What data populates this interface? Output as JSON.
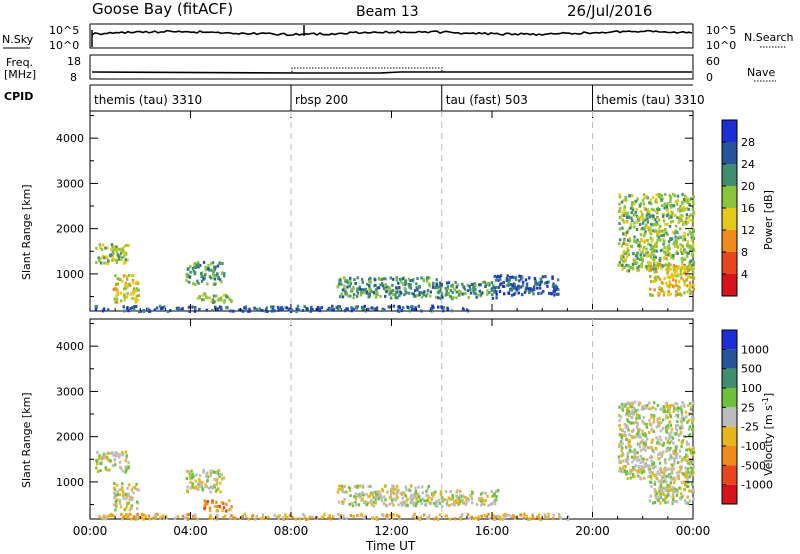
{
  "header": {
    "station": "Goose Bay (fitACF)",
    "beam": "Beam 13",
    "date": "26/Jul/2016"
  },
  "noise_panel": {
    "left_label": "N.Sky",
    "right_label": "N.Search",
    "left_ticks": [
      "10^5",
      "10^0"
    ],
    "right_ticks": [
      "10^5",
      "10^0"
    ]
  },
  "freq_panel": {
    "left_label_1": "Freq.",
    "left_label_2": "[MHz]",
    "right_label": "Nave",
    "left_ticks": [
      "18",
      "8"
    ],
    "right_ticks": [
      "60",
      "0"
    ]
  },
  "cpid": {
    "label": "CPID",
    "segments": [
      {
        "name": "themis (tau) 3310",
        "start_hour": 0.0
      },
      {
        "name": "rbsp 200",
        "start_hour": 8.0
      },
      {
        "name": "tau (fast) 503",
        "start_hour": 14.0
      },
      {
        "name": "themis (tau) 3310",
        "start_hour": 20.0
      }
    ]
  },
  "x_axis": {
    "title": "Time UT",
    "ticks": [
      "00:00",
      "04:00",
      "08:00",
      "12:00",
      "16:00",
      "20:00",
      "00:00"
    ]
  },
  "y_axis": {
    "title": "Slant Range [km]",
    "ticks": [
      "1000",
      "2000",
      "3000",
      "4000"
    ]
  },
  "power_colorbar": {
    "title": "Power [dB]",
    "labels": [
      "4",
      "8",
      "12",
      "16",
      "20",
      "24",
      "28"
    ],
    "colors": [
      "#1c2fd6",
      "#26539a",
      "#3d8f6f",
      "#8ac43a",
      "#e6c81c",
      "#ef8a1c",
      "#e8471d",
      "#d8121a"
    ]
  },
  "velocity_colorbar": {
    "title": "Velocity [m s",
    "superscript": "-1",
    "title_end": "]",
    "labels": [
      "1000",
      "500",
      "100",
      "25",
      "-25",
      "-100",
      "-500",
      "-1000"
    ],
    "colors": [
      "#1c2fd6",
      "#26539a",
      "#3d8f6f",
      "#6cc23b",
      "#bcbcbc",
      "#e6b61c",
      "#ef8a1c",
      "#e8471d",
      "#d8121a"
    ]
  },
  "chart_data": [
    {
      "type": "heatmap",
      "title": "Power [dB]",
      "xlabel": "Time UT",
      "ylabel": "Slant Range [km]",
      "xlim": [
        0,
        24
      ],
      "ylim": [
        180,
        4600
      ],
      "patches": [
        {
          "t0": 0.2,
          "t1": 1.5,
          "r0": 1250,
          "r1": 1700,
          "level": 3
        },
        {
          "t0": 0.9,
          "t1": 1.9,
          "r0": 400,
          "r1": 1000,
          "level": 4
        },
        {
          "t0": 3.8,
          "t1": 5.3,
          "r0": 800,
          "r1": 1300,
          "level": 2
        },
        {
          "t0": 4.2,
          "t1": 5.6,
          "r0": 400,
          "r1": 600,
          "level": 3
        },
        {
          "t0": 0.0,
          "t1": 15.0,
          "r0": 200,
          "r1": 320,
          "level": 1
        },
        {
          "t0": 9.8,
          "t1": 13.8,
          "r0": 500,
          "r1": 950,
          "level": 2
        },
        {
          "t0": 13.6,
          "t1": 16.2,
          "r0": 480,
          "r1": 850,
          "level": 2
        },
        {
          "t0": 16.0,
          "t1": 18.6,
          "r0": 560,
          "r1": 1000,
          "level": 1
        },
        {
          "t0": 21.0,
          "t1": 24.0,
          "r0": 1100,
          "r1": 2800,
          "level": 3
        },
        {
          "t0": 22.2,
          "t1": 24.0,
          "r0": 550,
          "r1": 1250,
          "level": 4
        }
      ]
    },
    {
      "type": "heatmap",
      "title": "Velocity [m s-1]",
      "xlabel": "Time UT",
      "ylabel": "Slant Range [km]",
      "xlim": [
        0,
        24
      ],
      "ylim": [
        180,
        4600
      ],
      "patches": [
        {
          "t0": 0.2,
          "t1": 1.5,
          "r0": 1250,
          "r1": 1700,
          "level": 4
        },
        {
          "t0": 0.9,
          "t1": 1.9,
          "r0": 400,
          "r1": 1000,
          "level": 4
        },
        {
          "t0": 3.8,
          "t1": 5.3,
          "r0": 800,
          "r1": 1300,
          "level": 4
        },
        {
          "t0": 4.5,
          "t1": 5.6,
          "r0": 380,
          "r1": 620,
          "level": 6
        },
        {
          "t0": 0.0,
          "t1": 19.0,
          "r0": 200,
          "r1": 320,
          "level": 5
        },
        {
          "t0": 9.8,
          "t1": 13.8,
          "r0": 500,
          "r1": 950,
          "level": 4
        },
        {
          "t0": 13.6,
          "t1": 16.2,
          "r0": 480,
          "r1": 850,
          "level": 4
        },
        {
          "t0": 21.0,
          "t1": 24.0,
          "r0": 1100,
          "r1": 2800,
          "level": 4
        },
        {
          "t0": 22.2,
          "t1": 24.0,
          "r0": 550,
          "r1": 1250,
          "level": 4
        }
      ]
    }
  ]
}
